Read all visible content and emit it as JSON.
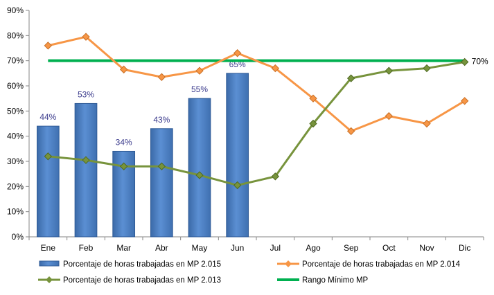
{
  "chart_data": {
    "type": "bar",
    "categories": [
      "Ene",
      "Feb",
      "Mar",
      "Abr",
      "May",
      "Jun",
      "Jul",
      "Ago",
      "Sep",
      "Oct",
      "Nov",
      "Dic"
    ],
    "ylim": [
      0,
      90
    ],
    "yticks": [
      "0%",
      "10%",
      "20%",
      "30%",
      "40%",
      "50%",
      "60%",
      "70%",
      "80%",
      "90%"
    ],
    "ytick_values": [
      0,
      10,
      20,
      30,
      40,
      50,
      60,
      70,
      80,
      90
    ],
    "grid": false,
    "legend_placement": "bottom",
    "series": [
      {
        "name": "Porcentaje de horas trabajadas en MP 2.015",
        "type": "bar",
        "color": "#4f81bd",
        "values": [
          44,
          53,
          34,
          43,
          55,
          65,
          null,
          null,
          null,
          null,
          null,
          null
        ],
        "data_labels": [
          "44%",
          "53%",
          "34%",
          "43%",
          "55%",
          "65%"
        ]
      },
      {
        "name": "Porcentaje de horas trabajadas en MP 2.014",
        "type": "line",
        "color": "#f79646",
        "values": [
          76,
          79.5,
          66.5,
          63.5,
          66,
          73,
          67,
          55,
          42,
          48,
          45,
          54
        ]
      },
      {
        "name": "Porcentaje de horas trabajadas en MP 2.013",
        "type": "line",
        "color": "#77933c",
        "values": [
          32,
          30.5,
          28,
          28,
          24.5,
          20.5,
          24,
          45,
          63,
          66,
          67,
          69.5
        ]
      },
      {
        "name": "Rango Mínimo MP",
        "type": "line",
        "color": "#00b050",
        "values": [
          70,
          70,
          70,
          70,
          70,
          70,
          70,
          70,
          70,
          70,
          70,
          70
        ],
        "end_label": "70%"
      }
    ]
  }
}
